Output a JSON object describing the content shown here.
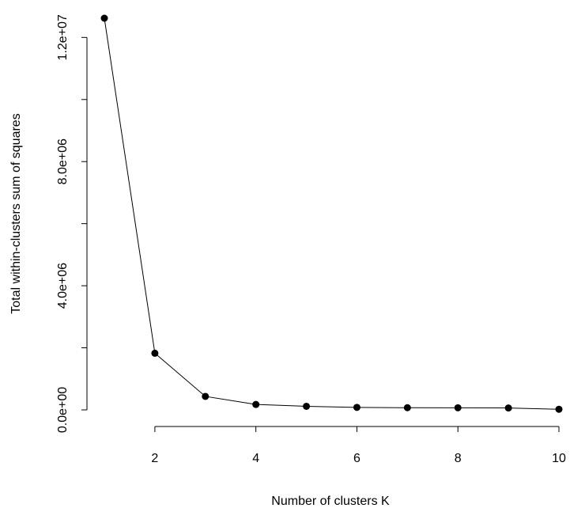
{
  "colors": {
    "background": "#ffffff",
    "foreground": "#000000"
  },
  "chart_data": {
    "type": "line",
    "title": "",
    "xlabel": "Number of clusters K",
    "ylabel": "Total within-clusters sum of squares",
    "x": [
      1,
      2,
      3,
      4,
      5,
      6,
      7,
      8,
      9,
      10
    ],
    "series": [
      {
        "values": [
          12620000,
          1825000,
          435000,
          175000,
          115000,
          80000,
          70000,
          68000,
          62000,
          20000
        ]
      }
    ],
    "xlim": [
      1,
      10
    ],
    "ylim": [
      0,
      12620000
    ],
    "x_ticks": [
      2,
      4,
      6,
      8,
      10
    ],
    "x_tick_labels": [
      "2",
      "4",
      "6",
      "8",
      "10"
    ],
    "y_ticks": [
      0,
      2000000,
      4000000,
      6000000,
      8000000,
      10000000,
      12000000
    ],
    "y_tick_labels": [
      "0.0e+00",
      "",
      "4.0e+06",
      "",
      "8.0e+06",
      "",
      "1.2e+07"
    ],
    "marker": "filled-circle",
    "grid": false,
    "legend": "none"
  }
}
